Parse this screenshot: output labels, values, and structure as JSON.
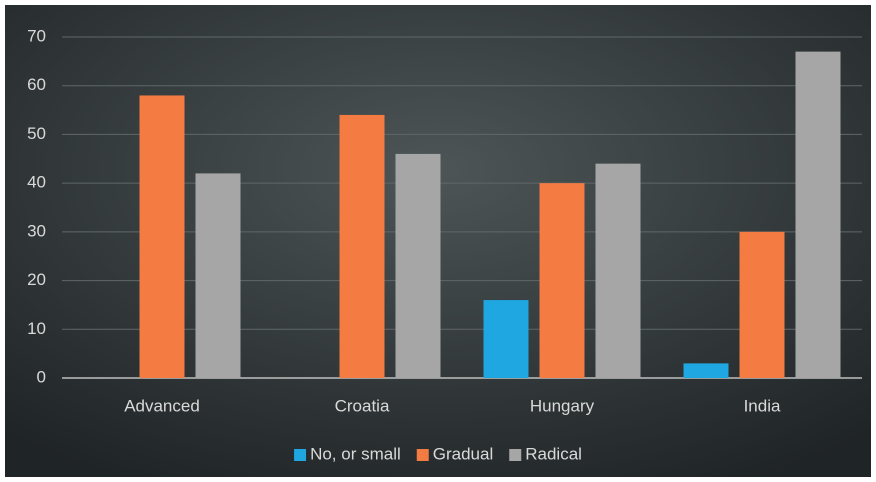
{
  "chart_data": {
    "type": "bar",
    "categories": [
      "Advanced",
      "Croatia",
      "Hungary",
      "India"
    ],
    "series": [
      {
        "name": "No, or small",
        "color": "#1ea7e1",
        "values": [
          0,
          0,
          16,
          3
        ]
      },
      {
        "name": "Gradual",
        "color": "#f47b42",
        "values": [
          58,
          54,
          40,
          30
        ]
      },
      {
        "name": "Radical",
        "color": "#a6a6a6",
        "values": [
          42,
          46,
          44,
          67
        ]
      }
    ],
    "ylim": [
      0,
      70
    ],
    "yticks": [
      0,
      10,
      20,
      30,
      40,
      50,
      60,
      70
    ],
    "grid": true,
    "legend": "bottom"
  }
}
